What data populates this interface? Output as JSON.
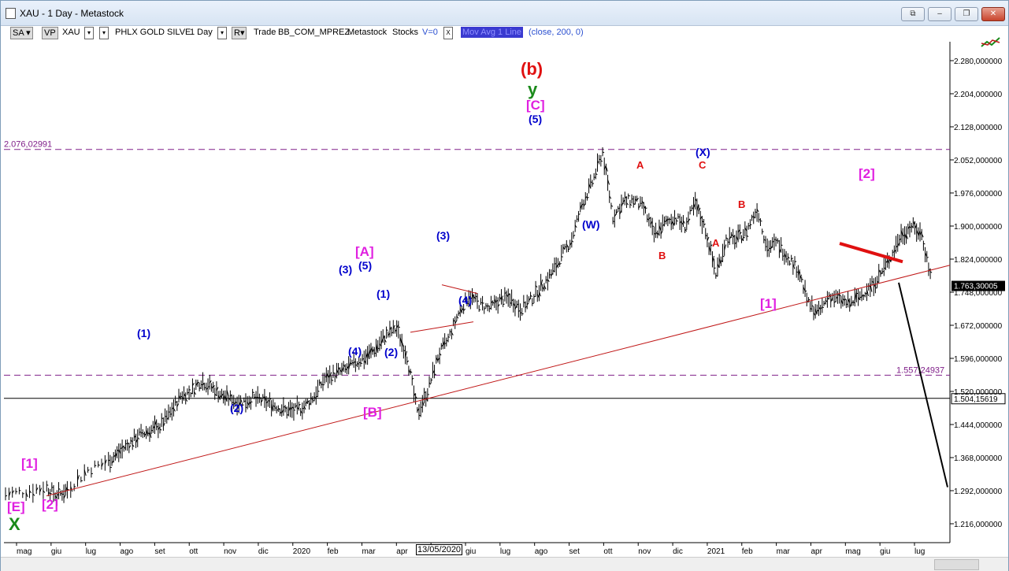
{
  "window": {
    "title": "XAU - 1 Day - Metastock",
    "minimize": "–",
    "restore": "❐",
    "close": "✕",
    "extra": "⧉"
  },
  "toolbar": {
    "sa": "SA",
    "vp": "VP",
    "symbol": "XAU",
    "name": "PHLX GOLD SILVE",
    "period": "1 Day",
    "r": "R",
    "trade": "Trade",
    "template": "BB_COM_MPREZ",
    "source": "Metastock",
    "stocks": "Stocks",
    "v0": "V=0",
    "x": "X",
    "indicator": "Mov Avg 1 Line",
    "params": "(close,  200,  0)"
  },
  "colors": {
    "wave_blue": "#0000cc",
    "wave_magenta": "#e020e0",
    "wave_red": "#e01010",
    "wave_green": "#1a8a1a",
    "hline_purple": "#80208a",
    "trend_red": "#c01818",
    "price_box": "#000000"
  },
  "chart_data": {
    "type": "ohlc",
    "yticks": [
      2280,
      2204,
      2128,
      2052,
      1976,
      1900,
      1824,
      1748,
      1672,
      1596,
      1520,
      1444,
      1368,
      1292,
      1216
    ],
    "ytick_labels": [
      "2.280,000000",
      "2.204,000000",
      "2.128,000000",
      "2.052,000000",
      "1.976,000000",
      "1.900,000000",
      "1.824,000000",
      "1.748,000000",
      "1.672,000000",
      "1.596,000000",
      "1.520,000000",
      "1.444,000000",
      "1.368,000000",
      "1.292,000000",
      "1.216,000000"
    ],
    "xticks": [
      "mag",
      "giu",
      "lug",
      "ago",
      "set",
      "ott",
      "nov",
      "dic",
      "2020",
      "feb",
      "mar",
      "apr",
      "mag",
      "giu",
      "lug",
      "ago",
      "set",
      "ott",
      "nov",
      "dic",
      "2021",
      "feb",
      "mar",
      "apr",
      "mag",
      "giu",
      "lug"
    ],
    "x_cursor_label": "13/05/2020",
    "last_price_label": "1.763,30005",
    "horizontal_levels": [
      {
        "value": 2076.02991,
        "label": "2.076,02991",
        "style": "dashed"
      },
      {
        "value": 1557.24937,
        "label": "1.557,24937",
        "style": "dashed"
      },
      {
        "value": 1504.15619,
        "label": "1.504,15619",
        "style": "solid"
      }
    ],
    "price_path": [
      [
        0,
        1285
      ],
      [
        2,
        1290
      ],
      [
        4,
        1300
      ],
      [
        5,
        1280
      ],
      [
        6,
        1295
      ],
      [
        8,
        1340
      ],
      [
        10,
        1360
      ],
      [
        11,
        1380
      ],
      [
        12,
        1400
      ],
      [
        13,
        1420
      ],
      [
        14,
        1430
      ],
      [
        15,
        1440
      ],
      [
        16,
        1470
      ],
      [
        17,
        1510
      ],
      [
        18,
        1520
      ],
      [
        19,
        1545
      ],
      [
        20,
        1530
      ],
      [
        21,
        1510
      ],
      [
        22,
        1500
      ],
      [
        23,
        1495
      ],
      [
        24,
        1505
      ],
      [
        25,
        1498
      ],
      [
        26,
        1490
      ],
      [
        27,
        1478
      ],
      [
        28,
        1475
      ],
      [
        29,
        1485
      ],
      [
        30,
        1510
      ],
      [
        31,
        1550
      ],
      [
        32,
        1560
      ],
      [
        33,
        1570
      ],
      [
        34,
        1585
      ],
      [
        35,
        1600
      ],
      [
        36,
        1620
      ],
      [
        37,
        1650
      ],
      [
        38,
        1665
      ],
      [
        39,
        1600
      ],
      [
        40,
        1470
      ],
      [
        41,
        1520
      ],
      [
        42,
        1600
      ],
      [
        43,
        1640
      ],
      [
        44,
        1700
      ],
      [
        45,
        1740
      ],
      [
        46,
        1720
      ],
      [
        47,
        1710
      ],
      [
        48,
        1730
      ],
      [
        49,
        1735
      ],
      [
        50,
        1710
      ],
      [
        51,
        1730
      ],
      [
        52,
        1760
      ],
      [
        53,
        1790
      ],
      [
        54,
        1830
      ],
      [
        55,
        1870
      ],
      [
        56,
        1950
      ],
      [
        57,
        2000
      ],
      [
        58,
        2070
      ],
      [
        59,
        1920
      ],
      [
        60,
        1955
      ],
      [
        61,
        1960
      ],
      [
        62,
        1940
      ],
      [
        63,
        1880
      ],
      [
        64,
        1905
      ],
      [
        65,
        1920
      ],
      [
        66,
        1900
      ],
      [
        67,
        1950
      ],
      [
        68,
        1890
      ],
      [
        69,
        1790
      ],
      [
        70,
        1870
      ],
      [
        71,
        1870
      ],
      [
        72,
        1890
      ],
      [
        73,
        1940
      ],
      [
        74,
        1850
      ],
      [
        75,
        1860
      ],
      [
        76,
        1830
      ],
      [
        77,
        1800
      ],
      [
        78,
        1720
      ],
      [
        79,
        1700
      ],
      [
        80,
        1740
      ],
      [
        81,
        1730
      ],
      [
        82,
        1720
      ],
      [
        83,
        1740
      ],
      [
        84,
        1760
      ],
      [
        85,
        1790
      ],
      [
        86,
        1830
      ],
      [
        87,
        1880
      ],
      [
        88,
        1900
      ],
      [
        89,
        1880
      ],
      [
        90,
        1770
      ]
    ],
    "trendline": {
      "from": [
        "2019-05",
        1280
      ],
      "to": [
        "2021-07",
        1810
      ]
    },
    "projection": {
      "from": [
        "2021-06",
        1770
      ],
      "to": [
        "2021-08",
        1300
      ]
    },
    "wave_labels": [
      {
        "text": "[E]",
        "color": "magenta"
      },
      {
        "text": "X",
        "color": "green"
      },
      {
        "text": "[1]",
        "color": "magenta"
      },
      {
        "text": "[2]",
        "color": "magenta"
      },
      {
        "text": "(1)",
        "color": "blue"
      },
      {
        "text": "(2)",
        "color": "blue"
      },
      {
        "text": "(3)",
        "color": "blue"
      },
      {
        "text": "(4)",
        "color": "blue"
      },
      {
        "text": "(5)",
        "color": "blue"
      },
      {
        "text": "[A]",
        "color": "magenta"
      },
      {
        "text": "[B]",
        "color": "magenta"
      },
      {
        "text": "(1)",
        "color": "blue"
      },
      {
        "text": "(2)",
        "color": "blue"
      },
      {
        "text": "(3)",
        "color": "blue"
      },
      {
        "text": "(4)",
        "color": "blue"
      },
      {
        "text": "(b)",
        "color": "red"
      },
      {
        "text": "y",
        "color": "green"
      },
      {
        "text": "[C]",
        "color": "magenta"
      },
      {
        "text": "(5)",
        "color": "blue"
      },
      {
        "text": "(W)",
        "color": "blue"
      },
      {
        "text": "A",
        "color": "red"
      },
      {
        "text": "B",
        "color": "red"
      },
      {
        "text": "(X)",
        "color": "blue"
      },
      {
        "text": "C",
        "color": "red"
      },
      {
        "text": "A",
        "color": "red"
      },
      {
        "text": "B",
        "color": "red"
      },
      {
        "text": "[1]",
        "color": "magenta"
      },
      {
        "text": "[2]",
        "color": "magenta"
      }
    ]
  }
}
